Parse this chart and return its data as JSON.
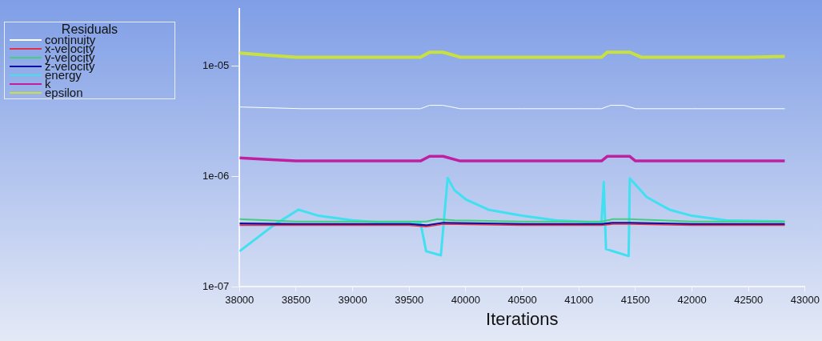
{
  "chart_data": {
    "type": "line",
    "xlabel": "Iterations",
    "legend_title": "Residuals",
    "legend": "top left",
    "log": true,
    "grid": false,
    "marker": "none",
    "line_style": "solid",
    "xlim": [
      38000,
      43000
    ],
    "xticks": [
      38000,
      38500,
      39000,
      39500,
      40000,
      40500,
      41000,
      41500,
      42000,
      42500,
      43000
    ],
    "ylim": [
      1e-07,
      3.3e-05
    ],
    "yticks": [
      {
        "value": 1e-07,
        "label": "1e-07"
      },
      {
        "value": 1e-06,
        "label": "1e-06"
      },
      {
        "value": 1e-05,
        "label": "1e-05"
      }
    ],
    "series": [
      {
        "name": "continuity",
        "color": "#ffffff",
        "x": [
          38000,
          38550,
          39600,
          39680,
          39800,
          39950,
          40500,
          41000,
          41200,
          41280,
          41400,
          41500,
          42000,
          42820
        ],
        "values": [
          4.25e-06,
          4.1e-06,
          4.1e-06,
          4.4e-06,
          4.4e-06,
          4.1e-06,
          4.1e-06,
          4.1e-06,
          4.1e-06,
          4.4e-06,
          4.4e-06,
          4.1e-06,
          4.1e-06,
          4.1e-06
        ]
      },
      {
        "name": "x-velocity",
        "color": "#e0304a",
        "x": [
          38000,
          38500,
          39500,
          39650,
          39800,
          40500,
          41200,
          41300,
          41450,
          42000,
          42820
        ],
        "values": [
          3.6e-07,
          3.6e-07,
          3.6e-07,
          3.5e-07,
          3.7e-07,
          3.6e-07,
          3.6e-07,
          3.7e-07,
          3.7e-07,
          3.6e-07,
          3.6e-07
        ]
      },
      {
        "name": "y-velocity",
        "color": "#40d080",
        "x": [
          38000,
          38500,
          39500,
          39650,
          39750,
          39900,
          40500,
          41200,
          41300,
          41450,
          42000,
          42820
        ],
        "values": [
          4.1e-07,
          3.9e-07,
          3.9e-07,
          3.9e-07,
          4.1e-07,
          4e-07,
          3.9e-07,
          3.9e-07,
          4.1e-07,
          4.1e-07,
          3.9e-07,
          3.9e-07
        ]
      },
      {
        "name": "z-velocity",
        "color": "#1010a0",
        "x": [
          38000,
          38500,
          39500,
          39650,
          39800,
          40500,
          41200,
          41300,
          41450,
          42000,
          42820
        ],
        "values": [
          3.75e-07,
          3.7e-07,
          3.7e-07,
          3.6e-07,
          3.8e-07,
          3.7e-07,
          3.7e-07,
          3.8e-07,
          3.8e-07,
          3.7e-07,
          3.7e-07
        ]
      },
      {
        "name": "energy",
        "color": "#40e0f0",
        "x": [
          38000,
          38300,
          38520,
          38700,
          39000,
          39300,
          39600,
          39650,
          39780,
          39840,
          39900,
          40000,
          40200,
          40500,
          40800,
          41000,
          41200,
          41220,
          41240,
          41440,
          41450,
          41600,
          41800,
          42000,
          42300,
          42820
        ],
        "values": [
          2.1e-07,
          3.6e-07,
          5e-07,
          4.4e-07,
          4e-07,
          3.8e-07,
          3.8e-07,
          2.1e-07,
          1.93e-07,
          9.7e-07,
          7.5e-07,
          6.2e-07,
          5e-07,
          4.4e-07,
          4e-07,
          3.9e-07,
          3.8e-07,
          8.9e-07,
          2.2e-07,
          1.9e-07,
          9.6e-07,
          6.5e-07,
          5e-07,
          4.4e-07,
          4e-07,
          3.9e-07
        ]
      },
      {
        "name": "k",
        "color": "#c020a0",
        "x": [
          38000,
          38250,
          38500,
          39600,
          39680,
          39800,
          39950,
          41200,
          41250,
          41450,
          41500,
          42820
        ],
        "values": [
          1.47e-06,
          1.42e-06,
          1.38e-06,
          1.38e-06,
          1.52e-06,
          1.52e-06,
          1.38e-06,
          1.38e-06,
          1.52e-06,
          1.52e-06,
          1.38e-06,
          1.38e-06
        ]
      },
      {
        "name": "epsilon",
        "color": "#c8e040",
        "x": [
          38000,
          38250,
          38500,
          39600,
          39680,
          39800,
          39950,
          41200,
          41250,
          41450,
          41550,
          42500,
          42820
        ],
        "values": [
          1.31e-05,
          1.25e-05,
          1.2e-05,
          1.2e-05,
          1.33e-05,
          1.33e-05,
          1.2e-05,
          1.2e-05,
          1.33e-05,
          1.33e-05,
          1.2e-05,
          1.2e-05,
          1.22e-05
        ]
      }
    ]
  }
}
